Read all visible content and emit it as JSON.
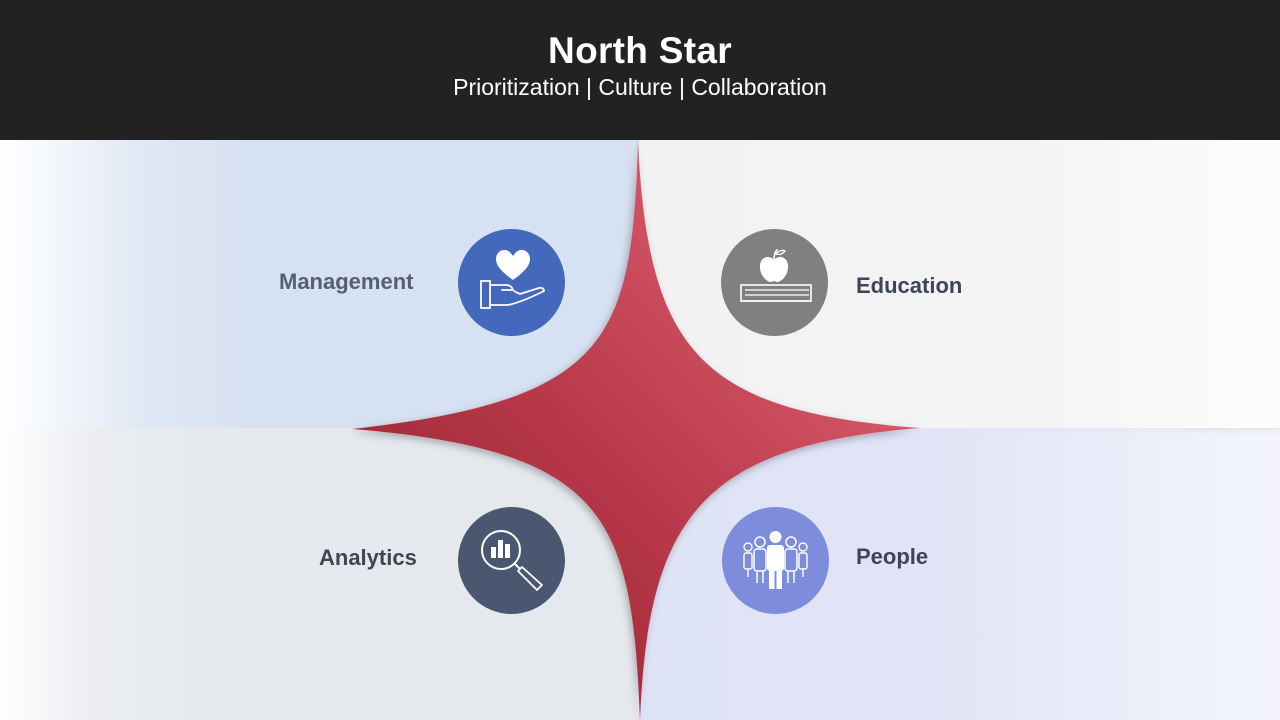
{
  "header": {
    "title": "North Star",
    "subtitle": "Prioritization | Culture | Collaboration"
  },
  "quadrants": {
    "management": {
      "label": "Management",
      "icon": "heart-in-hand-icon",
      "color": "#4468bb"
    },
    "education": {
      "label": "Education",
      "icon": "apple-on-books-icon",
      "color": "#808080"
    },
    "analytics": {
      "label": "Analytics",
      "icon": "magnifier-bar-chart-icon",
      "color": "#4a5770"
    },
    "people": {
      "label": "People",
      "icon": "group-of-people-icon",
      "color": "#7d8ddb"
    }
  },
  "colors": {
    "header_bg": "#222222",
    "star_light": "#e05a6b",
    "star_dark": "#931c2a"
  }
}
